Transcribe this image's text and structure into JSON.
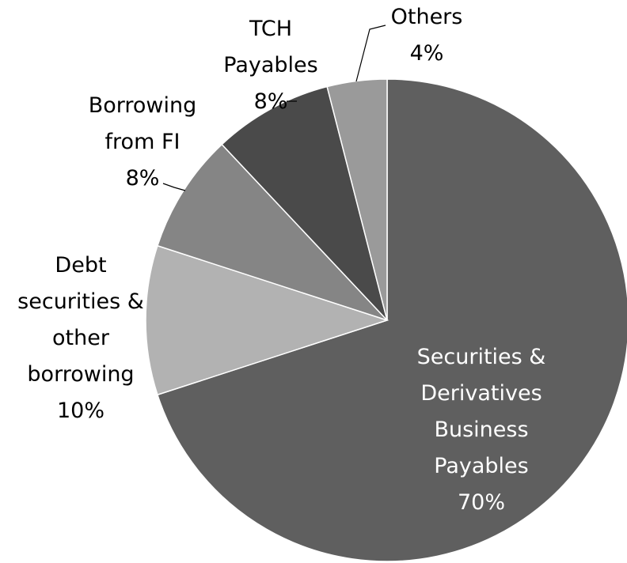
{
  "chart_data": {
    "type": "pie",
    "slices": [
      {
        "label_lines": [
          "Securities &",
          "Derivatives",
          "Business",
          "Payables"
        ],
        "pct_label": "70%",
        "value": 70,
        "color": "#5f5f5f",
        "label_color": "#ffffff"
      },
      {
        "label_lines": [
          "Debt",
          "securities &",
          "other",
          "borrowing"
        ],
        "pct_label": "10%",
        "value": 10,
        "color": "#b2b2b2",
        "label_color": "#000000"
      },
      {
        "label_lines": [
          "Borrowing",
          "from FI"
        ],
        "pct_label": "8%",
        "value": 8,
        "color": "#858585",
        "label_color": "#000000"
      },
      {
        "label_lines": [
          "TCH",
          "Payables"
        ],
        "pct_label": "8%",
        "value": 8,
        "color": "#4a4a4a",
        "label_color": "#000000"
      },
      {
        "label_lines": [
          "Others"
        ],
        "pct_label": "4%",
        "value": 4,
        "color": "#9a9a9a",
        "label_color": "#000000"
      }
    ],
    "start_angle_deg": 0,
    "direction": "clockwise",
    "slice_border_color": "#ffffff",
    "leader_line_color": "#000000"
  }
}
